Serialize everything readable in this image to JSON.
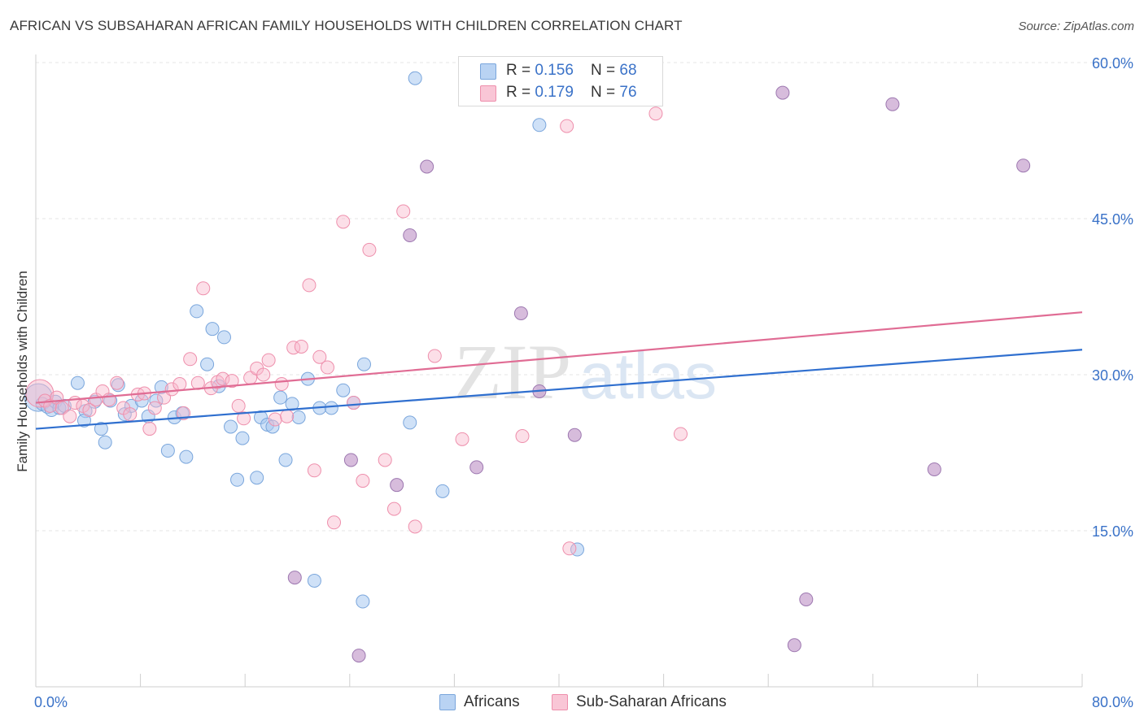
{
  "title": "AFRICAN VS SUBSAHARAN AFRICAN FAMILY HOUSEHOLDS WITH CHILDREN CORRELATION CHART",
  "source": "Source: ZipAtlas.com",
  "watermark": {
    "zip": "ZIP",
    "atlas": "atlas"
  },
  "legend_top": {
    "rows": [
      {
        "r_label": "R = ",
        "r_value": "0.156",
        "n_label": "N = ",
        "n_value": "68"
      },
      {
        "r_label": "R = ",
        "r_value": "0.179",
        "n_label": "N = ",
        "n_value": "76"
      }
    ]
  },
  "legend_bottom": {
    "items": [
      "Africans",
      "Sub-Saharan Africans"
    ]
  },
  "colors": {
    "africans_fill": "#a8c8f0",
    "africans_stroke": "#7aa6dc",
    "africans_line": "#2f6fcf",
    "subsaharan_fill": "#f8b8cc",
    "subsaharan_stroke": "#ee8fac",
    "subsaharan_line": "#e06c94",
    "overlap_fill": "#c9a6d0",
    "tick_label": "#3a72c8",
    "grid": "#e6e6e6"
  },
  "chart_data": {
    "type": "scatter",
    "title": "AFRICAN VS SUBSAHARAN AFRICAN FAMILY HOUSEHOLDS WITH CHILDREN CORRELATION CHART",
    "xlabel": "",
    "ylabel": "Family Households with Children",
    "xlim": [
      0,
      80
    ],
    "ylim": [
      0,
      60
    ],
    "x_tick_labels": [
      "0.0%",
      "80.0%"
    ],
    "y_ticks": [
      15,
      30,
      45,
      60
    ],
    "y_tick_labels": [
      "15.0%",
      "30.0%",
      "45.0%",
      "60.0%"
    ],
    "grid": true,
    "series": [
      {
        "name": "Africans",
        "trend": {
          "x": [
            0,
            80
          ],
          "y": [
            24.8,
            32.4
          ]
        },
        "points": [
          [
            0.2,
            27.8
          ],
          [
            0.5,
            27.2
          ],
          [
            0.9,
            26.9
          ],
          [
            1.2,
            26.6
          ],
          [
            1.5,
            27.4
          ],
          [
            1.8,
            26.8
          ],
          [
            2.2,
            27.0
          ],
          [
            3.2,
            29.2
          ],
          [
            3.8,
            26.5
          ],
          [
            3.7,
            25.6
          ],
          [
            4.5,
            27.4
          ],
          [
            5.0,
            24.8
          ],
          [
            5.3,
            23.5
          ],
          [
            5.7,
            27.5
          ],
          [
            6.3,
            29.0
          ],
          [
            6.8,
            26.2
          ],
          [
            7.3,
            27.0
          ],
          [
            8.1,
            27.5
          ],
          [
            8.6,
            26.0
          ],
          [
            9.2,
            27.5
          ],
          [
            9.6,
            28.8
          ],
          [
            10.1,
            22.7
          ],
          [
            10.6,
            25.9
          ],
          [
            11.2,
            26.3
          ],
          [
            11.5,
            22.1
          ],
          [
            12.3,
            36.1
          ],
          [
            13.1,
            31.0
          ],
          [
            13.5,
            34.4
          ],
          [
            14.0,
            28.9
          ],
          [
            14.4,
            33.6
          ],
          [
            14.9,
            25.0
          ],
          [
            15.4,
            19.9
          ],
          [
            15.8,
            23.9
          ],
          [
            16.9,
            20.1
          ],
          [
            17.2,
            25.9
          ],
          [
            17.7,
            25.2
          ],
          [
            18.1,
            25.0
          ],
          [
            18.7,
            27.8
          ],
          [
            19.1,
            21.8
          ],
          [
            19.6,
            27.2
          ],
          [
            20.1,
            25.9
          ],
          [
            20.8,
            29.6
          ],
          [
            21.7,
            26.8
          ],
          [
            22.6,
            26.8
          ],
          [
            23.5,
            28.5
          ],
          [
            24.3,
            27.3
          ],
          [
            25.1,
            31.0
          ],
          [
            28.6,
            25.4
          ],
          [
            31.1,
            18.8
          ],
          [
            38.5,
            54.0
          ],
          [
            41.4,
            13.2
          ],
          [
            21.3,
            10.2
          ],
          [
            25.0,
            8.2
          ],
          [
            29.0,
            58.5
          ]
        ]
      },
      {
        "name": "Sub-Saharan Africans",
        "trend": {
          "x": [
            0,
            80
          ],
          "y": [
            27.3,
            36.0
          ]
        },
        "points": [
          [
            0.3,
            28.2
          ],
          [
            0.7,
            27.5
          ],
          [
            1.1,
            27.0
          ],
          [
            1.6,
            27.8
          ],
          [
            2.0,
            26.8
          ],
          [
            2.6,
            26.0
          ],
          [
            3.0,
            27.3
          ],
          [
            3.6,
            27.0
          ],
          [
            4.1,
            26.6
          ],
          [
            4.6,
            27.6
          ],
          [
            5.1,
            28.4
          ],
          [
            5.6,
            27.6
          ],
          [
            6.2,
            29.2
          ],
          [
            6.7,
            26.8
          ],
          [
            7.2,
            26.2
          ],
          [
            7.8,
            28.1
          ],
          [
            8.3,
            28.2
          ],
          [
            8.7,
            24.8
          ],
          [
            9.1,
            26.8
          ],
          [
            9.8,
            27.8
          ],
          [
            10.4,
            28.6
          ],
          [
            11.0,
            29.1
          ],
          [
            11.3,
            26.3
          ],
          [
            11.8,
            31.5
          ],
          [
            12.4,
            29.2
          ],
          [
            12.8,
            38.3
          ],
          [
            13.4,
            28.7
          ],
          [
            13.9,
            29.3
          ],
          [
            14.3,
            29.6
          ],
          [
            15.0,
            29.4
          ],
          [
            15.5,
            27.0
          ],
          [
            15.9,
            25.8
          ],
          [
            16.4,
            29.7
          ],
          [
            16.9,
            30.6
          ],
          [
            17.4,
            30.0
          ],
          [
            17.8,
            31.4
          ],
          [
            18.3,
            25.7
          ],
          [
            18.8,
            29.1
          ],
          [
            19.2,
            26.0
          ],
          [
            19.7,
            32.6
          ],
          [
            20.3,
            32.7
          ],
          [
            20.9,
            38.6
          ],
          [
            21.3,
            20.8
          ],
          [
            21.7,
            31.7
          ],
          [
            22.3,
            30.7
          ],
          [
            22.8,
            15.8
          ],
          [
            23.5,
            44.7
          ],
          [
            24.3,
            27.3
          ],
          [
            25.0,
            19.8
          ],
          [
            25.5,
            42.0
          ],
          [
            26.7,
            21.8
          ],
          [
            27.4,
            17.1
          ],
          [
            28.1,
            45.7
          ],
          [
            29.0,
            15.4
          ],
          [
            30.5,
            31.8
          ],
          [
            32.6,
            23.8
          ],
          [
            37.2,
            24.1
          ],
          [
            40.6,
            53.9
          ],
          [
            40.8,
            13.3
          ],
          [
            47.4,
            55.1
          ],
          [
            49.3,
            24.3
          ]
        ]
      },
      {
        "name": "overlap",
        "points": [
          [
            29.9,
            50.0
          ],
          [
            57.1,
            57.1
          ],
          [
            65.5,
            56.0
          ],
          [
            75.5,
            50.1
          ],
          [
            28.6,
            43.4
          ],
          [
            37.1,
            35.9
          ],
          [
            38.5,
            28.4
          ],
          [
            41.2,
            24.2
          ],
          [
            33.7,
            21.1
          ],
          [
            27.6,
            19.4
          ],
          [
            24.1,
            21.8
          ],
          [
            19.8,
            10.5
          ],
          [
            24.7,
            3.0
          ],
          [
            58.9,
            8.4
          ],
          [
            58.0,
            4.0
          ],
          [
            68.7,
            20.9
          ]
        ]
      }
    ]
  }
}
